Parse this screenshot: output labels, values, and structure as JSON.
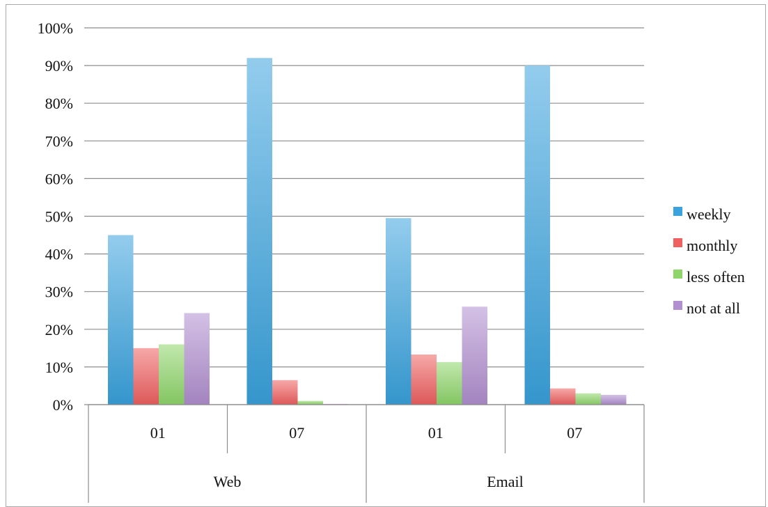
{
  "chart_data": {
    "type": "bar",
    "groups": [
      {
        "label": "Web",
        "categories": [
          "01",
          "07"
        ]
      },
      {
        "label": "Email",
        "categories": [
          "01",
          "07"
        ]
      }
    ],
    "series": [
      {
        "name": "weekly",
        "color": "#3aa3de",
        "values": [
          45,
          92,
          49.5,
          90
        ]
      },
      {
        "name": "monthly",
        "color": "#f06060",
        "values": [
          15,
          6.5,
          13.3,
          4.3
        ]
      },
      {
        "name": "less often",
        "color": "#8fd66a",
        "values": [
          16,
          1,
          11.3,
          3
        ]
      },
      {
        "name": "not at all",
        "color": "#b18fd0",
        "values": [
          24.3,
          0.2,
          26,
          2.6
        ]
      }
    ],
    "ylim": [
      0,
      100
    ],
    "yticks": [
      "0%",
      "10%",
      "20%",
      "30%",
      "40%",
      "50%",
      "60%",
      "70%",
      "80%",
      "90%",
      "100%"
    ],
    "grid": true,
    "legend_position": "right"
  }
}
